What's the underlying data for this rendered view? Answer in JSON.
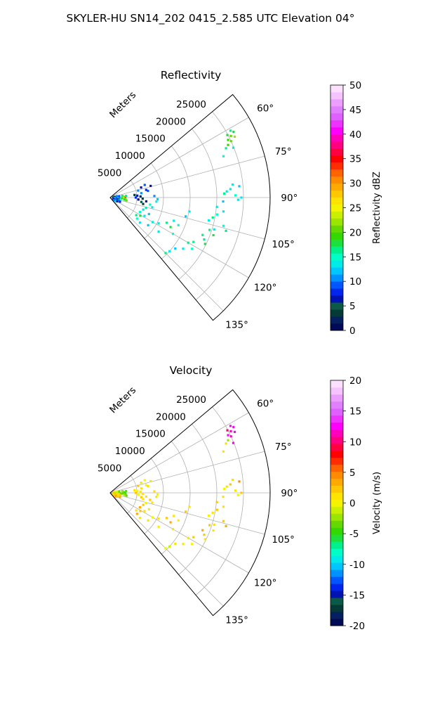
{
  "figure_title": "SKYLER-HU  SN14_202  0415_2.585 UTC Elevation 04°",
  "chart_data": [
    {
      "type": "scatter",
      "subtype": "polar-sector-ppi",
      "title": "Reflectivity",
      "range_label": "Meters",
      "range_ticks": [
        "5000",
        "10000",
        "15000",
        "20000",
        "25000"
      ],
      "range_lim": [
        0,
        30000
      ],
      "angle_lim": [
        50,
        140
      ],
      "angle_ticks": [
        "60°",
        "75°",
        "90°",
        "105°",
        "120°",
        "135°"
      ],
      "grid": true,
      "colorbar": {
        "label": "Reflectivity dBZ",
        "ticks": [
          "0",
          "5",
          "10",
          "15",
          "20",
          "25",
          "30",
          "35",
          "40",
          "45",
          "50"
        ],
        "range": [
          0,
          50
        ],
        "colors": [
          "#000a55",
          "#05205e",
          "#063a36",
          "#0a5a46",
          "#0013b0",
          "#0026ee",
          "#0057ff",
          "#0092ff",
          "#00c6ff",
          "#00eaea",
          "#00ffc8",
          "#00f08c",
          "#1ee03c",
          "#34d800",
          "#64d800",
          "#9ae600",
          "#c8f000",
          "#f4f400",
          "#ffe400",
          "#ffc800",
          "#ffaa00",
          "#ff8c00",
          "#ff6400",
          "#ff2d00",
          "#ff0000",
          "#ff0040",
          "#ff0080",
          "#ff00bb",
          "#ff00ff",
          "#ee33ff",
          "#e060ff",
          "#e080ff",
          "#ec9eff",
          "#f6c2ff",
          "#fde0ff"
        ]
      },
      "points": [
        [
          62,
          26200,
          18
        ],
        [
          63,
          25400,
          20
        ],
        [
          64,
          24600,
          19
        ],
        [
          61,
          25800,
          17
        ],
        [
          65,
          25000,
          21
        ],
        [
          62,
          24900,
          18
        ],
        [
          66,
          24200,
          19
        ],
        [
          64,
          26000,
          22
        ],
        [
          67,
          23600,
          16
        ],
        [
          70,
          22600,
          15
        ],
        [
          68,
          24900,
          14
        ],
        [
          85,
          24300,
          12
        ],
        [
          86,
          22600,
          14
        ],
        [
          87,
          21900,
          13
        ],
        [
          88,
          21400,
          16
        ],
        [
          89,
          23500,
          15
        ],
        [
          90,
          24600,
          13
        ],
        [
          91,
          24000,
          14
        ],
        [
          84,
          23100,
          13
        ],
        [
          92,
          21200,
          12
        ],
        [
          95,
          20100,
          13
        ],
        [
          97,
          21400,
          14
        ],
        [
          99,
          20300,
          15
        ],
        [
          101,
          19600,
          16
        ],
        [
          103,
          19000,
          14
        ],
        [
          104,
          21900,
          15
        ],
        [
          106,
          22600,
          17
        ],
        [
          107,
          20400,
          14
        ],
        [
          108,
          19600,
          16
        ],
        [
          110,
          20600,
          18
        ],
        [
          112,
          18700,
          17
        ],
        [
          114,
          19300,
          16
        ],
        [
          116,
          19800,
          18
        ],
        [
          118,
          17700,
          17
        ],
        [
          120,
          16900,
          16
        ],
        [
          122,
          18100,
          15
        ],
        [
          125,
          16700,
          13
        ],
        [
          128,
          15500,
          12
        ],
        [
          132,
          15000,
          14
        ],
        [
          135,
          14700,
          16
        ],
        [
          100,
          15100,
          13
        ],
        [
          104,
          14600,
          12
        ],
        [
          110,
          12700,
          14
        ],
        [
          112,
          13800,
          15
        ],
        [
          114,
          11600,
          16
        ],
        [
          116,
          12600,
          18
        ],
        [
          118,
          10300,
          14
        ],
        [
          120,
          13600,
          15
        ],
        [
          125,
          11100,
          13
        ],
        [
          95,
          8700,
          14
        ],
        [
          100,
          7600,
          15
        ],
        [
          103,
          8100,
          13
        ],
        [
          106,
          7000,
          16
        ],
        [
          110,
          6600,
          14
        ],
        [
          113,
          7900,
          12
        ],
        [
          116,
          6200,
          15
        ],
        [
          118,
          7300,
          13
        ],
        [
          121,
          6600,
          18
        ],
        [
          124,
          5900,
          16
        ],
        [
          128,
          6400,
          15
        ],
        [
          130,
          7300,
          14
        ],
        [
          120,
          9200,
          13
        ],
        [
          126,
          8800,
          12
        ],
        [
          84,
          4600,
          3
        ],
        [
          86,
          5100,
          6
        ],
        [
          88,
          5700,
          2
        ],
        [
          90,
          4800,
          8
        ],
        [
          92,
          6100,
          4
        ],
        [
          94,
          5300,
          1
        ],
        [
          96,
          6800,
          7
        ],
        [
          98,
          5900,
          5
        ],
        [
          101,
          6300,
          3
        ],
        [
          80,
          7200,
          9
        ],
        [
          78,
          6900,
          8
        ],
        [
          82,
          5900,
          11
        ],
        [
          76,
          5400,
          10
        ],
        [
          72,
          6100,
          7
        ],
        [
          70,
          6900,
          9
        ],
        [
          74,
          7900,
          6
        ],
        [
          88,
          8300,
          10
        ],
        [
          92,
          8900,
          12
        ],
        [
          86,
          2400,
          21
        ],
        [
          88,
          2600,
          27
        ],
        [
          90,
          2800,
          33
        ],
        [
          92,
          2500,
          24
        ],
        [
          94,
          2200,
          19
        ],
        [
          96,
          2900,
          22
        ],
        [
          98,
          2700,
          18
        ],
        [
          100,
          3100,
          20
        ],
        [
          84,
          3000,
          17
        ],
        [
          82,
          2300,
          16
        ],
        [
          80,
          800,
          5
        ],
        [
          85,
          1200,
          8
        ],
        [
          90,
          600,
          3
        ],
        [
          95,
          900,
          11
        ],
        [
          100,
          1400,
          6
        ],
        [
          105,
          800,
          12
        ],
        [
          110,
          1100,
          9
        ],
        [
          115,
          700,
          7
        ],
        [
          120,
          1300,
          13
        ],
        [
          125,
          900,
          10
        ],
        [
          92,
          1800,
          14
        ],
        [
          97,
          1600,
          4
        ],
        [
          103,
          1900,
          15
        ],
        [
          108,
          1700,
          11
        ],
        [
          113,
          2000,
          8
        ],
        [
          118,
          1500,
          6
        ],
        [
          88,
          1500,
          12
        ],
        [
          82,
          1700,
          9
        ],
        [
          78,
          1300,
          10
        ]
      ]
    },
    {
      "type": "scatter",
      "subtype": "polar-sector-ppi",
      "title": "Velocity",
      "range_label": "Meters",
      "range_ticks": [
        "5000",
        "10000",
        "15000",
        "20000",
        "25000"
      ],
      "range_lim": [
        0,
        30000
      ],
      "angle_lim": [
        50,
        140
      ],
      "angle_ticks": [
        "60°",
        "75°",
        "90°",
        "105°",
        "120°",
        "135°"
      ],
      "grid": true,
      "colorbar": {
        "label": "Velocity (m/s)",
        "ticks": [
          "-20",
          "-15",
          "-10",
          "-5",
          "0",
          "5",
          "10",
          "15",
          "20"
        ],
        "range": [
          -20,
          20
        ],
        "colors": [
          "#000a55",
          "#05205e",
          "#063a36",
          "#0a5a46",
          "#0013b0",
          "#0026ee",
          "#0057ff",
          "#0092ff",
          "#00c6ff",
          "#00eaea",
          "#00ffc8",
          "#00f08c",
          "#1ee03c",
          "#34d800",
          "#64d800",
          "#9ae600",
          "#c8f000",
          "#f4f400",
          "#ffe400",
          "#ffc800",
          "#ffaa00",
          "#ff8c00",
          "#ff6400",
          "#ff2d00",
          "#ff0000",
          "#ff0040",
          "#ff0080",
          "#ff00bb",
          "#ff00ff",
          "#ee33ff",
          "#e060ff",
          "#e080ff",
          "#ec9eff",
          "#f6c2ff",
          "#fde0ff"
        ]
      },
      "points": [
        [
          62,
          26200,
          12
        ],
        [
          63,
          25400,
          11
        ],
        [
          64,
          24600,
          13
        ],
        [
          61,
          25800,
          12
        ],
        [
          65,
          25000,
          11
        ],
        [
          62,
          24900,
          10
        ],
        [
          66,
          24200,
          -2
        ],
        [
          64,
          26000,
          12
        ],
        [
          67,
          23600,
          1
        ],
        [
          70,
          22600,
          1
        ],
        [
          68,
          24900,
          12
        ],
        [
          85,
          24300,
          5
        ],
        [
          86,
          22600,
          2
        ],
        [
          87,
          21900,
          1
        ],
        [
          88,
          21400,
          0
        ],
        [
          89,
          23500,
          1
        ],
        [
          90,
          24600,
          2
        ],
        [
          91,
          24000,
          0
        ],
        [
          84,
          23100,
          1
        ],
        [
          92,
          21200,
          1
        ],
        [
          95,
          20100,
          2
        ],
        [
          97,
          21400,
          1
        ],
        [
          99,
          20300,
          2
        ],
        [
          101,
          19600,
          1
        ],
        [
          103,
          19000,
          0
        ],
        [
          104,
          21900,
          2
        ],
        [
          106,
          22600,
          3
        ],
        [
          107,
          20400,
          1
        ],
        [
          108,
          19600,
          2
        ],
        [
          110,
          20600,
          1
        ],
        [
          112,
          18700,
          3
        ],
        [
          114,
          19300,
          2
        ],
        [
          116,
          19800,
          1
        ],
        [
          118,
          17700,
          2
        ],
        [
          120,
          16900,
          1
        ],
        [
          122,
          18100,
          0
        ],
        [
          125,
          16700,
          1
        ],
        [
          128,
          15500,
          1
        ],
        [
          132,
          15000,
          -1
        ],
        [
          135,
          14700,
          0
        ],
        [
          100,
          15100,
          1
        ],
        [
          104,
          14600,
          2
        ],
        [
          110,
          12700,
          1
        ],
        [
          112,
          13800,
          0
        ],
        [
          114,
          11600,
          2
        ],
        [
          116,
          12600,
          3
        ],
        [
          118,
          10300,
          1
        ],
        [
          120,
          13600,
          1
        ],
        [
          125,
          11100,
          0
        ],
        [
          95,
          8700,
          1
        ],
        [
          100,
          7600,
          2
        ],
        [
          103,
          8100,
          1
        ],
        [
          106,
          7000,
          0
        ],
        [
          110,
          6600,
          2
        ],
        [
          113,
          7900,
          1
        ],
        [
          116,
          6200,
          3
        ],
        [
          118,
          7300,
          1
        ],
        [
          121,
          6600,
          2
        ],
        [
          124,
          5900,
          1
        ],
        [
          128,
          6400,
          3
        ],
        [
          130,
          7300,
          1
        ],
        [
          120,
          9200,
          0
        ],
        [
          126,
          8800,
          1
        ],
        [
          84,
          4600,
          1
        ],
        [
          86,
          5100,
          0
        ],
        [
          88,
          5700,
          1
        ],
        [
          90,
          4800,
          2
        ],
        [
          92,
          6100,
          1
        ],
        [
          94,
          5300,
          0
        ],
        [
          96,
          6800,
          1
        ],
        [
          98,
          5900,
          2
        ],
        [
          101,
          6300,
          1
        ],
        [
          80,
          7200,
          1
        ],
        [
          78,
          6900,
          0
        ],
        [
          82,
          5900,
          1
        ],
        [
          76,
          5400,
          2
        ],
        [
          72,
          6100,
          1
        ],
        [
          70,
          6900,
          0
        ],
        [
          74,
          7900,
          1
        ],
        [
          88,
          8300,
          1
        ],
        [
          92,
          8900,
          0
        ],
        [
          86,
          2400,
          -5
        ],
        [
          88,
          2600,
          -7
        ],
        [
          90,
          2800,
          -6
        ],
        [
          92,
          2500,
          -4
        ],
        [
          94,
          2200,
          -3
        ],
        [
          96,
          2900,
          -5
        ],
        [
          98,
          2700,
          -2
        ],
        [
          100,
          3100,
          -4
        ],
        [
          84,
          3000,
          -3
        ],
        [
          82,
          2300,
          -2
        ],
        [
          80,
          800,
          1
        ],
        [
          85,
          1200,
          -2
        ],
        [
          90,
          600,
          2
        ],
        [
          95,
          900,
          -1
        ],
        [
          100,
          1400,
          1
        ],
        [
          105,
          800,
          3
        ],
        [
          110,
          1100,
          2
        ],
        [
          115,
          700,
          1
        ],
        [
          120,
          1300,
          4
        ],
        [
          125,
          900,
          2
        ],
        [
          92,
          1800,
          -4
        ],
        [
          97,
          1600,
          1
        ],
        [
          103,
          1900,
          2
        ],
        [
          108,
          1700,
          1
        ],
        [
          113,
          2000,
          3
        ],
        [
          118,
          1500,
          2
        ],
        [
          88,
          1500,
          -1
        ],
        [
          82,
          1700,
          -3
        ],
        [
          78,
          1300,
          0
        ]
      ]
    }
  ]
}
